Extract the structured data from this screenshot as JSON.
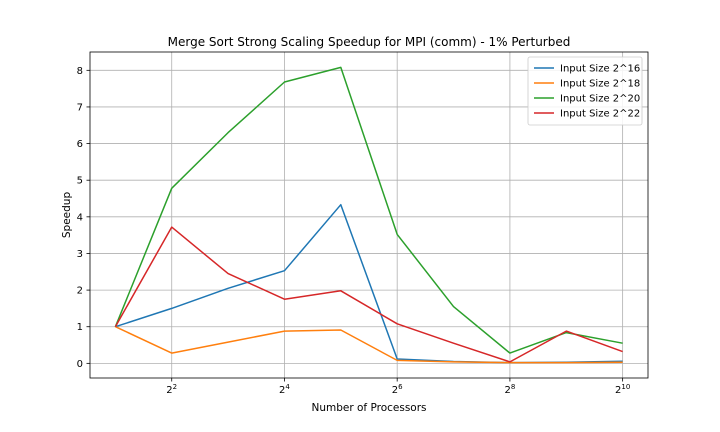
{
  "chart_data": {
    "type": "line",
    "title": "Merge Sort Strong Scaling Speedup for MPI (comm) - 1% Perturbed",
    "xlabel": "Number of Processors",
    "ylabel": "Speedup",
    "x_scale": "log2",
    "x": [
      2,
      4,
      8,
      16,
      32,
      64,
      128,
      256,
      512,
      1024
    ],
    "x_tick_values": [
      4,
      16,
      64,
      256,
      1024
    ],
    "x_tick_labels": [
      {
        "base": "2",
        "exp": "2"
      },
      {
        "base": "2",
        "exp": "4"
      },
      {
        "base": "2",
        "exp": "6"
      },
      {
        "base": "2",
        "exp": "8"
      },
      {
        "base": "2",
        "exp": "10"
      }
    ],
    "ylim": [
      -0.4,
      8.5
    ],
    "y_ticks": [
      0,
      1,
      2,
      3,
      4,
      5,
      6,
      7,
      8
    ],
    "grid": true,
    "legend_position": "top-right",
    "series": [
      {
        "name": "Input Size 2^16",
        "color": "#1f77b4",
        "values": [
          1.0,
          1.5,
          2.05,
          2.53,
          4.33,
          0.12,
          0.05,
          0.02,
          0.03,
          0.06
        ]
      },
      {
        "name": "Input Size 2^18",
        "color": "#ff7f0e",
        "values": [
          1.0,
          0.28,
          0.58,
          0.88,
          0.91,
          0.08,
          0.04,
          0.02,
          0.02,
          0.03
        ]
      },
      {
        "name": "Input Size 2^20",
        "color": "#2ca02c",
        "values": [
          1.0,
          4.78,
          6.3,
          7.68,
          8.08,
          3.52,
          1.55,
          0.28,
          0.84,
          0.55
        ]
      },
      {
        "name": "Input Size 2^22",
        "color": "#d62728",
        "values": [
          1.0,
          3.72,
          2.45,
          1.75,
          1.98,
          1.08,
          0.55,
          0.04,
          0.88,
          0.32
        ]
      }
    ]
  }
}
